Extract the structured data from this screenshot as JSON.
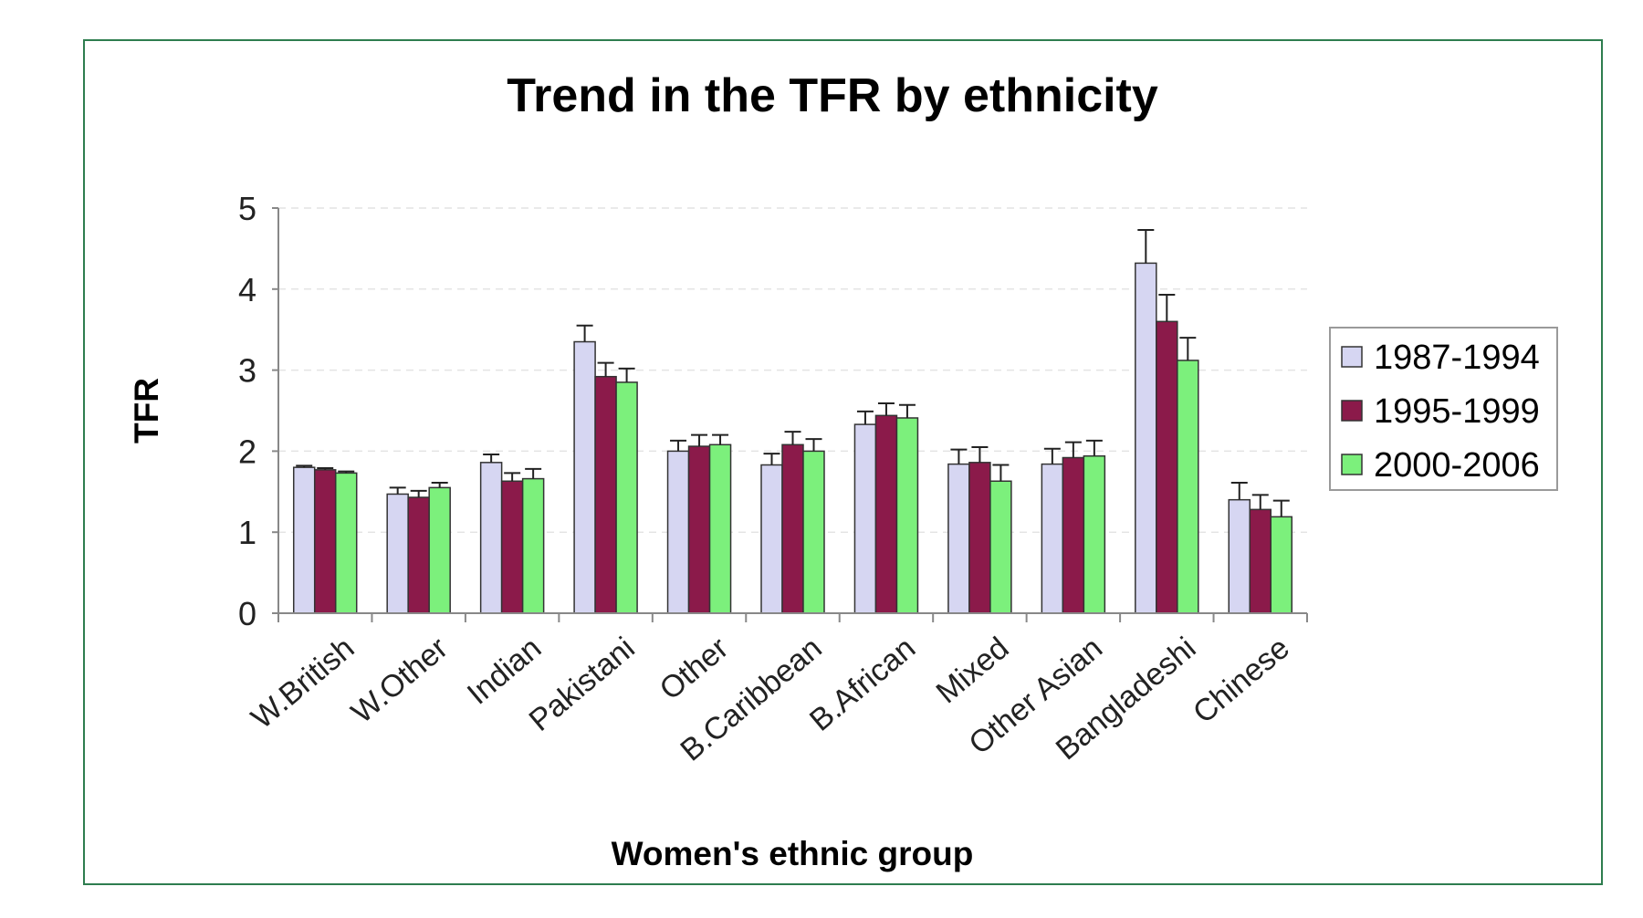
{
  "chart_data": {
    "type": "bar",
    "title": "Trend in the TFR by ethnicity",
    "xlabel": "Women's ethnic group",
    "ylabel": "TFR",
    "ylim": [
      0,
      5
    ],
    "yticks": [
      "0",
      "1",
      "2",
      "3",
      "4",
      "5"
    ],
    "grid": true,
    "legend_position": "right",
    "categories": [
      "W.British",
      "W.Other",
      "Indian",
      "Pakistani",
      "Other",
      "B.Caribbean",
      "B.African",
      "Mixed",
      "Other Asian",
      "Bangladeshi",
      "Chinese"
    ],
    "series": [
      {
        "name": "1987-1994",
        "color": "#d6d6f2",
        "values": [
          1.8,
          1.47,
          1.86,
          3.35,
          2.0,
          1.83,
          2.33,
          1.84,
          1.84,
          4.32,
          1.4
        ],
        "err_high": [
          1.82,
          1.55,
          1.96,
          3.55,
          2.13,
          1.97,
          2.49,
          2.02,
          2.03,
          4.73,
          1.61
        ]
      },
      {
        "name": "1995-1999",
        "color": "#8b1a4a",
        "values": [
          1.77,
          1.43,
          1.63,
          2.92,
          2.06,
          2.08,
          2.44,
          1.86,
          1.92,
          3.6,
          1.28
        ],
        "err_high": [
          1.79,
          1.51,
          1.73,
          3.09,
          2.2,
          2.24,
          2.59,
          2.05,
          2.11,
          3.93,
          1.46
        ]
      },
      {
        "name": "2000-2006",
        "color": "#7cf07c",
        "values": [
          1.73,
          1.55,
          1.66,
          2.85,
          2.08,
          2.0,
          2.41,
          1.63,
          1.94,
          3.12,
          1.19
        ],
        "err_high": [
          1.75,
          1.61,
          1.78,
          3.02,
          2.2,
          2.15,
          2.57,
          1.83,
          2.13,
          3.4,
          1.39
        ]
      }
    ]
  }
}
